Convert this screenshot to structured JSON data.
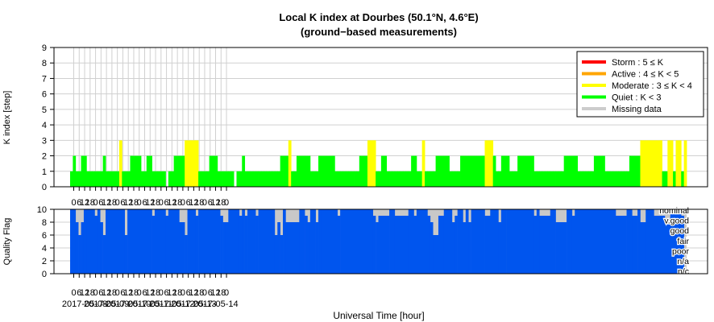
{
  "chart_data": [
    {
      "type": "bar",
      "title": "Local K index at Dourbes (50.1°N, 4.6°E)",
      "subtitle": "(ground−based measurements)",
      "ylabel": "K index [step]",
      "ylim": [
        0,
        9
      ],
      "yticks": [
        "0",
        "1",
        "2",
        "3",
        "4",
        "5",
        "6",
        "7",
        "8",
        "9"
      ],
      "grid": true,
      "x_unit": "3-hour intervals, 2017-05-07 21:00 to 2017-05-14 21:00 UT",
      "values": [
        1,
        2,
        1,
        1,
        2,
        2,
        1,
        1,
        1,
        1,
        1,
        1,
        2,
        1,
        1,
        1,
        1,
        1,
        3,
        1,
        1,
        1,
        2,
        2,
        2,
        2,
        1,
        1,
        2,
        2,
        1,
        1,
        1,
        1,
        1,
        0,
        1,
        1,
        2,
        2,
        2,
        2,
        3,
        3,
        3,
        3,
        3,
        1,
        1,
        1,
        1,
        2,
        2,
        2,
        1,
        1,
        1,
        1,
        1,
        1,
        0,
        1,
        1,
        2,
        1,
        1,
        1,
        1,
        1,
        1,
        1,
        1,
        1,
        1,
        1,
        1,
        1,
        2,
        2,
        2,
        3,
        1,
        1,
        2,
        2,
        2,
        2,
        2,
        1,
        1,
        1,
        2,
        2,
        2,
        2,
        2,
        2,
        1,
        1,
        1,
        1,
        1,
        1,
        1,
        1,
        1,
        2,
        2,
        2,
        3,
        3,
        3,
        1,
        1,
        2,
        2,
        1,
        1,
        1,
        1,
        1,
        1,
        1,
        1,
        1,
        2,
        2,
        1,
        1,
        3,
        1,
        1,
        1,
        1,
        2,
        2,
        2,
        2,
        2,
        1,
        1,
        1,
        1,
        2,
        2,
        2,
        2,
        2,
        2,
        2,
        2,
        2,
        3,
        3,
        3,
        2,
        1,
        1,
        2,
        2,
        2,
        1,
        1,
        1,
        2,
        2,
        2,
        2,
        2,
        2,
        1,
        1,
        1,
        1,
        1,
        1,
        1,
        1,
        1,
        1,
        1,
        2,
        2,
        2,
        2,
        2,
        1,
        1,
        1,
        1,
        1,
        1,
        2,
        2,
        2,
        2,
        1,
        1,
        1,
        1,
        1,
        1,
        1,
        1,
        1,
        2,
        2,
        2,
        2,
        3,
        3,
        3,
        3,
        3,
        3,
        3,
        3,
        1,
        1,
        3,
        3,
        1,
        3,
        3,
        1,
        3
      ],
      "legend_position": "top-right",
      "legend": [
        {
          "label": "Storm : 5 ≤ K",
          "color": "#ff0000"
        },
        {
          "label": "Active : 4 ≤ K < 5",
          "color": "#ffa500"
        },
        {
          "label": "Moderate : 3 ≤ K < 4",
          "color": "#ffff00"
        },
        {
          "label": "Quiet : K < 3",
          "color": "#00ff00"
        },
        {
          "label": "Missing data",
          "color": "#cccccc"
        }
      ],
      "colors": {
        "quiet": "#00ff00",
        "moderate": "#ffff00",
        "active": "#ffa500",
        "storm": "#ff0000",
        "missing": "#cccccc"
      }
    },
    {
      "type": "bar",
      "ylabel": "Quality Flag",
      "ylim": [
        0,
        10
      ],
      "yticks": [
        "0",
        "2",
        "4",
        "6",
        "8",
        "10"
      ],
      "xlabel": "Universal Time [hour]",
      "hour_ticks": [
        "0",
        "6",
        "12",
        "18",
        "0",
        "6",
        "12",
        "18",
        "0",
        "6",
        "12",
        "18",
        "0",
        "6",
        "12",
        "18",
        "0",
        "6",
        "12",
        "18",
        "0",
        "6",
        "12",
        "18",
        "0",
        "6",
        "12",
        "18",
        "0"
      ],
      "dates": [
        "2017-05-08",
        "2017-05-09",
        "2017-05-10",
        "2017-05-11",
        "2017-05-12",
        "2017-05-13",
        "2017-05-14"
      ],
      "flag_labels": [
        "nominal",
        "v.good",
        "good",
        "fair",
        "poor",
        "n/a",
        "n/c"
      ],
      "fill_color": "#0055ee",
      "missing_color": "#c8c8c8",
      "quality_segments": [
        [
          0,
          2,
          10
        ],
        [
          2,
          3,
          8
        ],
        [
          3,
          4,
          6
        ],
        [
          4,
          5,
          8
        ],
        [
          5,
          6,
          10
        ],
        [
          6,
          9,
          10
        ],
        [
          9,
          10,
          9
        ],
        [
          10,
          11,
          10
        ],
        [
          11,
          12,
          8
        ],
        [
          12,
          13,
          6
        ],
        [
          13,
          20,
          10
        ],
        [
          20,
          21,
          6
        ],
        [
          21,
          30,
          10
        ],
        [
          30,
          31,
          9
        ],
        [
          31,
          35,
          10
        ],
        [
          35,
          36,
          9
        ],
        [
          36,
          40,
          10
        ],
        [
          40,
          42,
          8
        ],
        [
          42,
          43,
          6
        ],
        [
          43,
          46,
          10
        ],
        [
          46,
          47,
          9
        ],
        [
          47,
          55,
          10
        ],
        [
          55,
          56,
          9
        ],
        [
          56,
          57,
          8
        ],
        [
          57,
          58,
          8
        ],
        [
          58,
          62,
          10
        ],
        [
          62,
          63,
          9
        ],
        [
          63,
          64,
          10
        ],
        [
          64,
          65,
          9
        ],
        [
          65,
          68,
          10
        ],
        [
          68,
          69,
          9
        ],
        [
          69,
          75,
          10
        ],
        [
          75,
          76,
          6
        ],
        [
          76,
          77,
          8
        ],
        [
          77,
          78,
          6
        ],
        [
          78,
          79,
          10
        ],
        [
          79,
          84,
          8
        ],
        [
          84,
          86,
          10
        ],
        [
          86,
          87,
          9
        ],
        [
          87,
          88,
          8
        ],
        [
          88,
          90,
          10
        ],
        [
          90,
          91,
          8
        ],
        [
          91,
          92,
          10
        ],
        [
          92,
          98,
          10
        ],
        [
          98,
          99,
          9
        ],
        [
          99,
          111,
          10
        ],
        [
          111,
          112,
          9
        ],
        [
          112,
          113,
          8
        ],
        [
          113,
          117,
          9
        ],
        [
          117,
          119,
          10
        ],
        [
          119,
          124,
          9
        ],
        [
          124,
          126,
          10
        ],
        [
          126,
          127,
          9
        ],
        [
          127,
          131,
          10
        ],
        [
          131,
          132,
          9
        ],
        [
          132,
          133,
          8
        ],
        [
          133,
          135,
          6
        ],
        [
          135,
          137,
          9
        ],
        [
          137,
          140,
          10
        ],
        [
          140,
          141,
          8
        ],
        [
          141,
          142,
          9
        ],
        [
          142,
          144,
          10
        ],
        [
          144,
          145,
          8
        ],
        [
          145,
          146,
          10
        ],
        [
          146,
          147,
          8
        ],
        [
          147,
          152,
          10
        ],
        [
          152,
          154,
          9
        ],
        [
          154,
          157,
          10
        ],
        [
          157,
          158,
          8
        ],
        [
          158,
          160,
          10
        ],
        [
          160,
          170,
          10
        ],
        [
          170,
          171,
          9
        ],
        [
          171,
          172,
          10
        ],
        [
          172,
          176,
          9
        ],
        [
          176,
          178,
          10
        ],
        [
          178,
          182,
          8
        ],
        [
          182,
          184,
          10
        ],
        [
          184,
          185,
          9
        ],
        [
          185,
          200,
          10
        ],
        [
          200,
          204,
          9
        ],
        [
          204,
          206,
          10
        ],
        [
          206,
          208,
          9
        ],
        [
          208,
          209,
          10
        ],
        [
          209,
          211,
          8
        ],
        [
          211,
          214,
          10
        ],
        [
          214,
          218,
          9
        ],
        [
          218,
          220,
          8
        ],
        [
          220,
          224,
          10
        ],
        [
          224,
          225,
          9
        ]
      ]
    }
  ]
}
